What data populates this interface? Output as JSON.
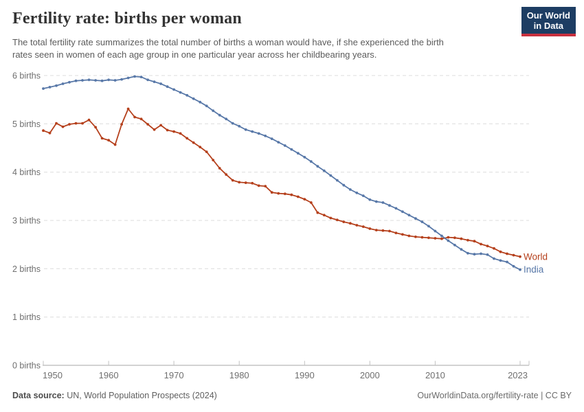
{
  "header": {
    "title": "Fertility rate: births per woman",
    "subtitle_lines": [
      "The total fertility rate summarizes the total number of births a woman would have, if she experienced the birth",
      "rates seen in women of each age group in one particular year across her childbearing years."
    ],
    "logo": {
      "line1": "Our World",
      "line2": "in Data"
    }
  },
  "footer": {
    "source_label": "Data source:",
    "source_text": " UN, World Population Prospects (2024)",
    "credit": "OurWorldinData.org/fertility-rate | CC BY"
  },
  "chart_data": {
    "type": "line",
    "title": "Fertility rate: births per woman",
    "xlabel": "",
    "ylabel": "births per woman",
    "xlim": [
      1950,
      2023
    ],
    "ylim": [
      0,
      6
    ],
    "grid": "horizontal-dashed",
    "legend_position": "line-end-labels",
    "yticks": [
      0,
      1,
      2,
      3,
      4,
      5,
      6
    ],
    "ytick_labels": [
      "0 births",
      "1 births",
      "2 births",
      "3 births",
      "4 births",
      "5 births",
      "6 births"
    ],
    "xticks": [
      1950,
      1960,
      1970,
      1980,
      1990,
      2000,
      2010,
      2023
    ],
    "years": [
      1950,
      1951,
      1952,
      1953,
      1954,
      1955,
      1956,
      1957,
      1958,
      1959,
      1960,
      1961,
      1962,
      1963,
      1964,
      1965,
      1966,
      1967,
      1968,
      1969,
      1970,
      1971,
      1972,
      1973,
      1974,
      1975,
      1976,
      1977,
      1978,
      1979,
      1980,
      1981,
      1982,
      1983,
      1984,
      1985,
      1986,
      1987,
      1988,
      1989,
      1990,
      1991,
      1992,
      1993,
      1994,
      1995,
      1996,
      1997,
      1998,
      1999,
      2000,
      2001,
      2002,
      2003,
      2004,
      2005,
      2006,
      2007,
      2008,
      2009,
      2010,
      2011,
      2012,
      2013,
      2014,
      2015,
      2016,
      2017,
      2018,
      2019,
      2020,
      2021,
      2022,
      2023
    ],
    "series": [
      {
        "name": "World",
        "color": "#B5401C",
        "values": [
          4.86,
          4.81,
          5.01,
          4.94,
          4.99,
          5.01,
          5.01,
          5.08,
          4.93,
          4.7,
          4.66,
          4.57,
          4.99,
          5.31,
          5.14,
          5.1,
          4.99,
          4.88,
          4.97,
          4.87,
          4.84,
          4.8,
          4.7,
          4.61,
          4.52,
          4.42,
          4.25,
          4.08,
          3.95,
          3.83,
          3.79,
          3.78,
          3.77,
          3.72,
          3.71,
          3.58,
          3.56,
          3.55,
          3.53,
          3.49,
          3.44,
          3.37,
          3.16,
          3.11,
          3.05,
          3.01,
          2.97,
          2.94,
          2.9,
          2.87,
          2.83,
          2.8,
          2.79,
          2.78,
          2.74,
          2.71,
          2.68,
          2.66,
          2.65,
          2.64,
          2.63,
          2.62,
          2.65,
          2.64,
          2.62,
          2.59,
          2.57,
          2.51,
          2.47,
          2.42,
          2.35,
          2.31,
          2.28,
          2.25
        ]
      },
      {
        "name": "India",
        "color": "#5878A8",
        "values": [
          5.73,
          5.76,
          5.79,
          5.83,
          5.86,
          5.89,
          5.9,
          5.91,
          5.9,
          5.89,
          5.91,
          5.9,
          5.92,
          5.95,
          5.98,
          5.97,
          5.91,
          5.87,
          5.83,
          5.77,
          5.71,
          5.65,
          5.59,
          5.52,
          5.45,
          5.37,
          5.27,
          5.18,
          5.1,
          5.01,
          4.95,
          4.88,
          4.84,
          4.8,
          4.75,
          4.69,
          4.62,
          4.55,
          4.47,
          4.39,
          4.31,
          4.22,
          4.12,
          4.03,
          3.93,
          3.83,
          3.73,
          3.64,
          3.57,
          3.51,
          3.43,
          3.39,
          3.37,
          3.31,
          3.25,
          3.18,
          3.11,
          3.04,
          2.97,
          2.88,
          2.78,
          2.68,
          2.58,
          2.49,
          2.4,
          2.32,
          2.3,
          2.31,
          2.29,
          2.21,
          2.17,
          2.14,
          2.05,
          1.98
        ]
      }
    ]
  }
}
